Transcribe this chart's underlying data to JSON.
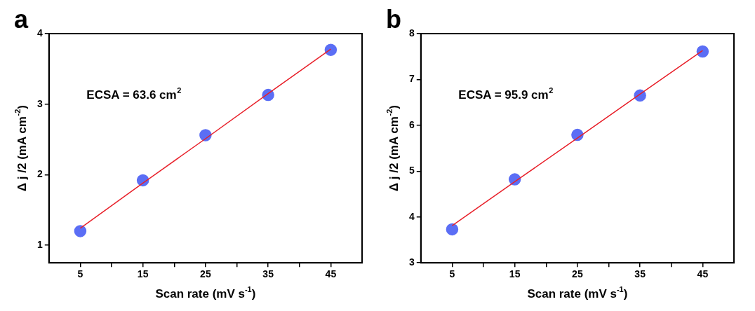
{
  "chart_data": [
    {
      "type": "scatter",
      "title": "a",
      "xlabel": "Scan rate (mV s$^{-1}$)",
      "ylabel": "Δ j /2 (mA cm$^{-2}$)",
      "annotations": [
        "ECSA = 63.6 cm$^{2}$"
      ],
      "x": [
        5,
        15,
        25,
        35,
        45
      ],
      "xlim": [
        0,
        50
      ],
      "xticks": [
        5,
        {
          "value": 10,
          "label": null
        },
        15,
        {
          "value": 20,
          "label": null
        },
        25,
        {
          "value": 30,
          "label": null
        },
        35,
        {
          "value": 40,
          "label": null
        },
        45
      ],
      "ylim": [
        0.75,
        4
      ],
      "yticks": [
        1,
        2,
        3,
        4
      ],
      "marker": "circle",
      "series": [
        {
          "color": "#5b6ef5",
          "values": [
            1.2,
            1.92,
            2.56,
            3.13,
            3.77
          ]
        },
        {
          "type": "line",
          "color": "#e8202a",
          "values": [
            1.24,
            1.88,
            2.51,
            3.15,
            3.78
          ],
          "marker": "none",
          "line_style": "solid"
        }
      ]
    },
    {
      "type": "scatter",
      "title": "b",
      "xlabel": "Scan rate (mV s$^{-1}$)",
      "ylabel": "Δ j /2 (mA cm$^{-2}$)",
      "annotations": [
        "ECSA = 95.9 cm$^{2}$"
      ],
      "x": [
        5,
        15,
        25,
        35,
        45
      ],
      "xlim": [
        0,
        50
      ],
      "xticks": [
        5,
        {
          "value": 10,
          "label": null
        },
        15,
        {
          "value": 20,
          "label": null
        },
        25,
        {
          "value": 30,
          "label": null
        },
        35,
        {
          "value": 40,
          "label": null
        },
        45
      ],
      "ylim": [
        3,
        8
      ],
      "yticks": [
        3,
        4,
        5,
        6,
        7,
        8
      ],
      "marker": "circle",
      "series": [
        {
          "color": "#5b6ef5",
          "values": [
            3.73,
            4.82,
            5.79,
            6.65,
            7.61
          ]
        },
        {
          "type": "line",
          "color": "#e8202a",
          "values": [
            3.81,
            4.77,
            5.72,
            6.68,
            7.63
          ],
          "marker": "none",
          "line_style": "solid"
        }
      ]
    }
  ]
}
